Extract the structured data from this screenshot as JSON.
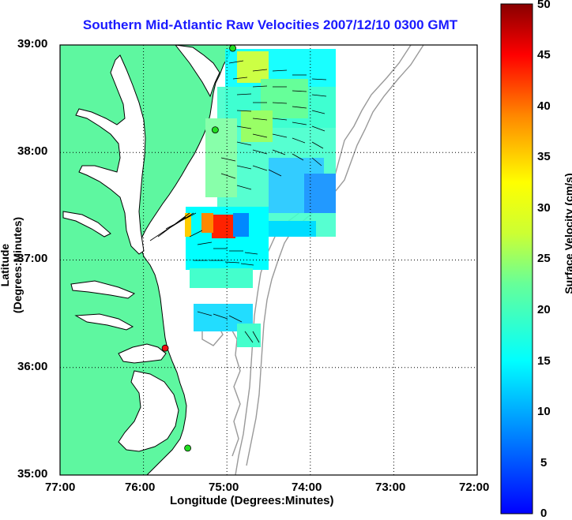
{
  "title": "Southern Mid-Atlantic Raw Velocities 2007/12/10 0300 GMT",
  "axes": {
    "xlabel": "Longitude (Degrees:Minutes)",
    "ylabel": "Latitude (Degrees:Minutes)",
    "x_ticks": [
      "77:00",
      "76:00",
      "75:00",
      "74:00",
      "73:00",
      "72:00"
    ],
    "y_ticks": [
      "39:00",
      "38:00",
      "37:00",
      "36:00",
      "35:00"
    ],
    "x_range_deg_west": [
      77,
      72
    ],
    "y_range_deg_north": [
      35,
      39
    ],
    "grid": "dotted"
  },
  "colorbar": {
    "label": "Surface Velocity (cm/s)",
    "ticks": [
      "50",
      "45",
      "40",
      "35",
      "30",
      "25",
      "20",
      "15",
      "10",
      "5",
      "0"
    ],
    "range": [
      0,
      50
    ],
    "colormap": "jet"
  },
  "colors": {
    "land": "#5ef7a0",
    "water": "#ffffff",
    "title": "#1a1aff",
    "bathymetry": "#999999",
    "site_active": "#22dd22",
    "site_inactive": "#ee1111"
  },
  "stations": [
    {
      "status": "active",
      "lon": -74.93,
      "lat": 38.97
    },
    {
      "status": "active",
      "lon": -75.14,
      "lat": 38.21
    },
    {
      "status": "inactive",
      "lon": -75.74,
      "lat": 36.18
    },
    {
      "status": "active",
      "lon": -75.47,
      "lat": 35.25
    }
  ]
}
